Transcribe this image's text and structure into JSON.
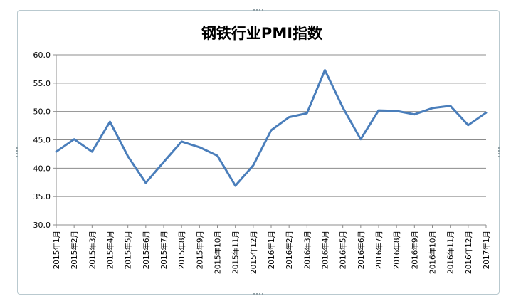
{
  "chart_data": {
    "type": "line",
    "title": "钢铁行业PMI指数",
    "xlabel": "",
    "ylabel": "",
    "ylim": [
      30.0,
      60.0
    ],
    "yticks": [
      "30.0",
      "35.0",
      "40.0",
      "45.0",
      "50.0",
      "55.0",
      "60.0"
    ],
    "grid": true,
    "legend": "none",
    "line_color": "#4a7ebb",
    "categories": [
      "2015年1月",
      "2015年2月",
      "2015年3月",
      "2015年4月",
      "2015年5月",
      "2015年6月",
      "2015年7月",
      "2015年8月",
      "2015年9月",
      "2015年10月",
      "2015年11月",
      "2015年12月",
      "2016年1月",
      "2016年2月",
      "2016年3月",
      "2016年4月",
      "2016年5月",
      "2016年6月",
      "2016年7月",
      "2016年8月",
      "2016年9月",
      "2016年10月",
      "2016年11月",
      "2016年12月",
      "2017年1月"
    ],
    "values": [
      42.9,
      45.1,
      42.9,
      48.2,
      42.1,
      37.4,
      41.1,
      44.7,
      43.7,
      42.2,
      36.9,
      40.5,
      46.7,
      49.0,
      49.7,
      57.3,
      50.7,
      45.1,
      50.2,
      50.1,
      49.5,
      50.6,
      51.0,
      47.6,
      49.8
    ]
  }
}
